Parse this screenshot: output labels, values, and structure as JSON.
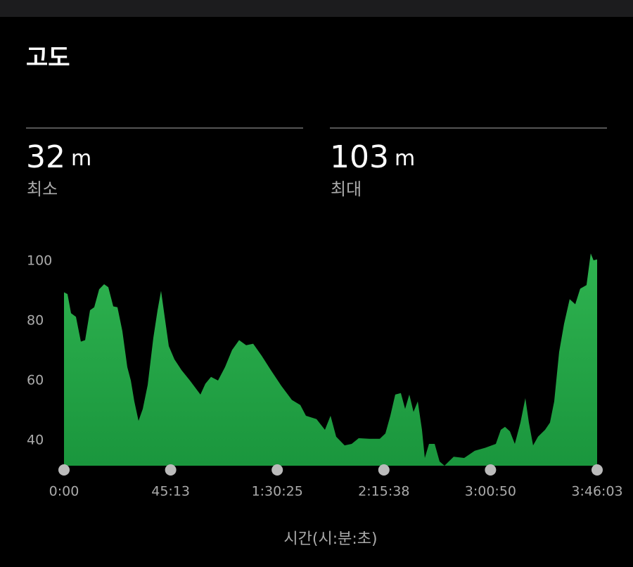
{
  "title": "고도",
  "stats": [
    {
      "value": 32,
      "unit": "m",
      "label": "최소"
    },
    {
      "value": 103,
      "unit": "m",
      "label": "최대"
    }
  ],
  "chart_data": {
    "type": "area",
    "x": [
      0,
      89,
      179,
      304,
      429,
      537,
      662,
      769,
      894,
      1020,
      1127,
      1253,
      1360,
      1485,
      1610,
      1700,
      1789,
      1896,
      2004,
      2129,
      2272,
      2380,
      2469,
      2559,
      2666,
      2809,
      2988,
      3203,
      3471,
      3596,
      3740,
      3918,
      4097,
      4276,
      4455,
      4634,
      4813,
      5028,
      5261,
      5529,
      5797,
      6012,
      6155,
      6424,
      6638,
      6781,
      6924,
      7139,
      7318,
      7497,
      7765,
      8034,
      8177,
      8302,
      8427,
      8570,
      8678,
      8785,
      8892,
      9000,
      9107,
      9179,
      9286,
      9430,
      9555,
      9680,
      9913,
      10181,
      10450,
      10718,
      10986,
      11112,
      11219,
      11344,
      11469,
      11612,
      11737,
      11827,
      11934,
      12059,
      12238,
      12363,
      12471,
      12596,
      12721,
      12864,
      13007,
      13132,
      13293,
      13400,
      13472,
      13563
    ],
    "series": [
      {
        "color": "#2fb350",
        "values": [
          90,
          89.4,
          83,
          81.8,
          73.5,
          74,
          84,
          85,
          91,
          92.7,
          91.7,
          85.3,
          85,
          77,
          65,
          60.5,
          53.5,
          47,
          51,
          59,
          74.7,
          84,
          90.5,
          82,
          72,
          67.6,
          64,
          60.5,
          55.8,
          59.4,
          61.7,
          60.5,
          65,
          70.7,
          74,
          72.3,
          72.8,
          68.8,
          64,
          58.7,
          54,
          52.3,
          48.7,
          47.6,
          44,
          48.7,
          41.7,
          38.8,
          39.3,
          41.2,
          41,
          41,
          42.8,
          48.7,
          55.8,
          56.3,
          51,
          55.8,
          50,
          53.5,
          44,
          34.6,
          39.3,
          39.3,
          33.4,
          32,
          35,
          34.6,
          37,
          38,
          39.3,
          44,
          45,
          43.5,
          39.3,
          46.4,
          54.6,
          46.4,
          38.8,
          41.7,
          44,
          46.4,
          53.5,
          70,
          79.4,
          87.7,
          86,
          91.2,
          92.4,
          103,
          100.7,
          101
        ]
      }
    ],
    "xlim": [
      0,
      13563
    ],
    "ylim": [
      32,
      104
    ],
    "yticks": [
      40,
      60,
      80,
      100
    ],
    "xticks": [
      {
        "value": 0,
        "label": "0:00"
      },
      {
        "value": 2713,
        "label": "45:13"
      },
      {
        "value": 5425,
        "label": "1:30:25"
      },
      {
        "value": 8138,
        "label": "2:15:38"
      },
      {
        "value": 10850,
        "label": "3:00:50"
      },
      {
        "value": 13563,
        "label": "3:46:03"
      }
    ],
    "xlabel": "시간(시:분:초)"
  }
}
